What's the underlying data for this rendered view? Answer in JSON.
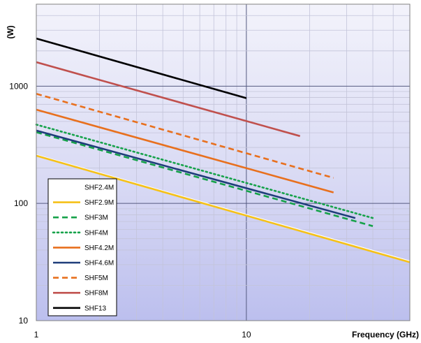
{
  "chart_data": {
    "type": "line",
    "title": "",
    "xlabel": "Frequency (GHz)",
    "ylabel": "(W)",
    "xscale": "log",
    "yscale": "log",
    "xlim": [
      1,
      60
    ],
    "ylim": [
      10,
      5000
    ],
    "x_tick_labels": [
      "1",
      "10"
    ],
    "y_tick_labels": [
      "10",
      "100",
      "1000"
    ],
    "grid": true,
    "legend_placement": "bottom-left",
    "background": "gradient blue",
    "series": [
      {
        "name": "SHF2.4M",
        "color": "#ffffff",
        "dash": "solid",
        "x": [
          1,
          60
        ],
        "y": [
          258,
          32
        ]
      },
      {
        "name": "SHF2.9M",
        "color": "#f5c118",
        "dash": "solid",
        "x": [
          1,
          60
        ],
        "y": [
          255,
          31.5
        ]
      },
      {
        "name": "SHF3M",
        "color": "#16a24a",
        "dash": "dashed",
        "x": [
          1,
          40
        ],
        "y": [
          405,
          64
        ]
      },
      {
        "name": "SHF4M",
        "color": "#16a24a",
        "dash": "dotted",
        "x": [
          1,
          40
        ],
        "y": [
          470,
          75
        ]
      },
      {
        "name": "SHF4.2M",
        "color": "#e8701e",
        "dash": "solid",
        "x": [
          1,
          26
        ],
        "y": [
          630,
          124
        ]
      },
      {
        "name": "SHF4.6M",
        "color": "#1f3d7a",
        "dash": "solid",
        "x": [
          1,
          33
        ],
        "y": [
          418,
          75
        ]
      },
      {
        "name": "SHF5M",
        "color": "#e8701e",
        "dash": "dashed",
        "x": [
          1,
          26
        ],
        "y": [
          860,
          165
        ]
      },
      {
        "name": "SHF8M",
        "color": "#c0504d",
        "dash": "solid",
        "x": [
          1,
          18
        ],
        "y": [
          1600,
          375
        ]
      },
      {
        "name": "SHF13",
        "color": "#000000",
        "dash": "solid",
        "x": [
          1,
          10
        ],
        "y": [
          2550,
          790
        ]
      }
    ]
  }
}
